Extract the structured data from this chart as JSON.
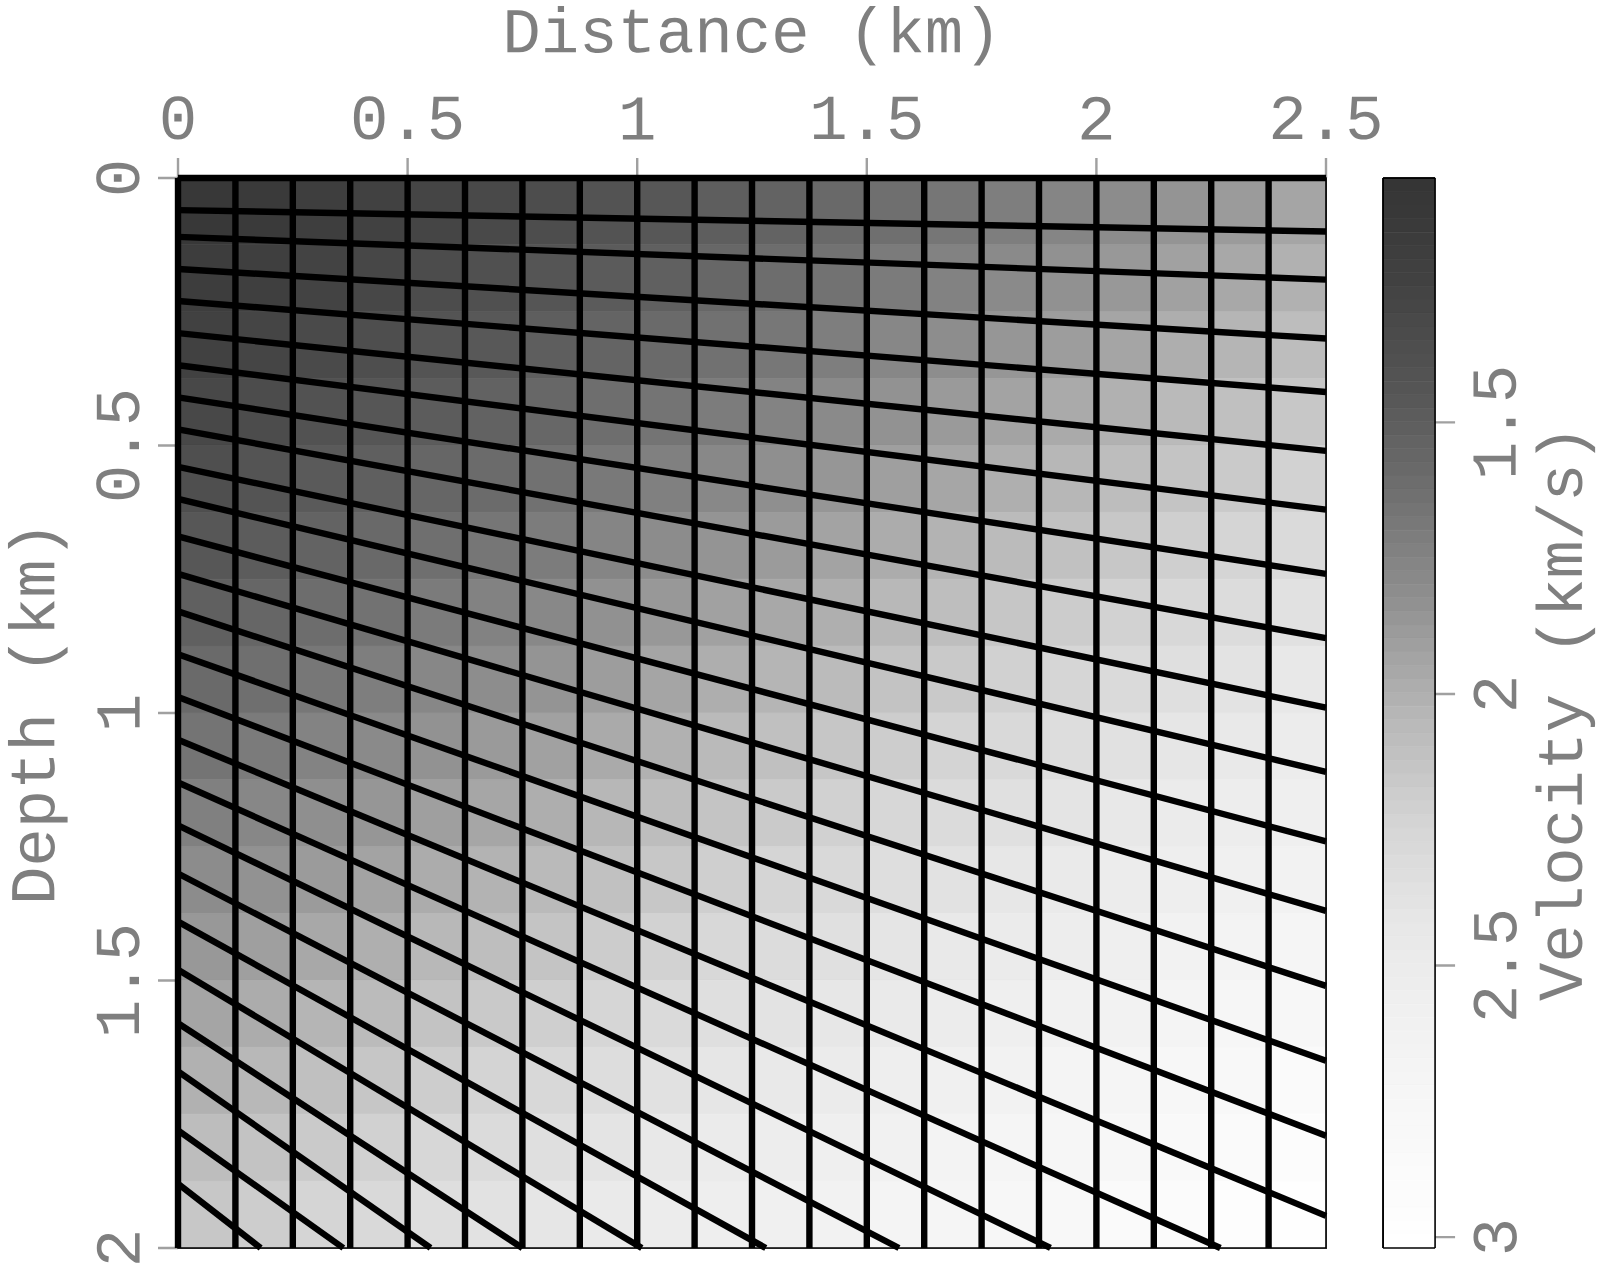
{
  "chart_data": [
    {
      "type": "heatmap",
      "clabel": "Velocity (km/s)",
      "categories": [
        null,
        null,
        null,
        null,
        null,
        null,
        null,
        null,
        null,
        null,
        null,
        null,
        null,
        null,
        null,
        null,
        null,
        null,
        null,
        null
      ],
      "y_categories": [
        null,
        null,
        null,
        null,
        null,
        null,
        null,
        null,
        null,
        null,
        null,
        null,
        null,
        null,
        null,
        null
      ],
      "cells": [
        [
          1.1,
          1.14,
          1.19,
          1.23,
          1.28,
          1.32,
          1.36,
          1.41,
          1.45,
          1.5,
          1.54,
          1.58,
          1.63,
          1.67,
          1.72,
          1.76,
          1.8,
          1.85,
          1.89,
          1.94
        ],
        [
          1.17,
          1.21,
          1.26,
          1.3,
          1.35,
          1.39,
          1.43,
          1.48,
          1.52,
          1.57,
          1.61,
          1.65,
          1.7,
          1.74,
          1.79,
          1.83,
          1.87,
          1.92,
          1.96,
          2.01
        ],
        [
          1.24,
          1.28,
          1.33,
          1.37,
          1.42,
          1.46,
          1.5,
          1.55,
          1.59,
          1.64,
          1.68,
          1.72,
          1.77,
          1.81,
          1.86,
          1.9,
          1.94,
          1.99,
          2.03,
          2.08
        ],
        [
          1.31,
          1.35,
          1.4,
          1.44,
          1.49,
          1.53,
          1.57,
          1.62,
          1.66,
          1.71,
          1.75,
          1.79,
          1.84,
          1.88,
          1.93,
          1.97,
          2.01,
          2.06,
          2.1,
          2.15
        ],
        [
          1.38,
          1.42,
          1.47,
          1.51,
          1.56,
          1.6,
          1.64,
          1.69,
          1.73,
          1.78,
          1.82,
          1.86,
          1.91,
          1.95,
          2,
          2.04,
          2.08,
          2.13,
          2.17,
          2.22
        ],
        [
          1.45,
          1.49,
          1.54,
          1.58,
          1.63,
          1.67,
          1.71,
          1.76,
          1.8,
          1.85,
          1.89,
          1.93,
          1.98,
          2.02,
          2.07,
          2.11,
          2.15,
          2.2,
          2.24,
          2.29
        ],
        [
          1.52,
          1.56,
          1.61,
          1.65,
          1.7,
          1.74,
          1.78,
          1.83,
          1.87,
          1.92,
          1.96,
          2,
          2.05,
          2.09,
          2.14,
          2.18,
          2.22,
          2.27,
          2.31,
          2.36
        ],
        [
          1.59,
          1.63,
          1.68,
          1.72,
          1.77,
          1.81,
          1.85,
          1.9,
          1.94,
          1.99,
          2.03,
          2.07,
          2.12,
          2.16,
          2.21,
          2.25,
          2.29,
          2.34,
          2.38,
          2.43
        ],
        [
          1.66,
          1.7,
          1.75,
          1.79,
          1.84,
          1.88,
          1.92,
          1.97,
          2.01,
          2.06,
          2.1,
          2.14,
          2.19,
          2.23,
          2.28,
          2.32,
          2.36,
          2.41,
          2.45,
          2.5
        ],
        [
          1.73,
          1.77,
          1.82,
          1.86,
          1.91,
          1.95,
          1.99,
          2.04,
          2.08,
          2.13,
          2.17,
          2.21,
          2.26,
          2.3,
          2.35,
          2.39,
          2.43,
          2.48,
          2.52,
          2.57
        ],
        [
          1.8,
          1.84,
          1.89,
          1.93,
          1.98,
          2.02,
          2.06,
          2.11,
          2.15,
          2.2,
          2.24,
          2.28,
          2.33,
          2.37,
          2.42,
          2.46,
          2.5,
          2.55,
          2.59,
          2.64
        ],
        [
          1.87,
          1.91,
          1.96,
          2,
          2.05,
          2.09,
          2.13,
          2.18,
          2.22,
          2.27,
          2.31,
          2.35,
          2.4,
          2.44,
          2.49,
          2.53,
          2.57,
          2.62,
          2.66,
          2.71
        ],
        [
          1.94,
          1.98,
          2.03,
          2.07,
          2.12,
          2.16,
          2.2,
          2.25,
          2.29,
          2.34,
          2.38,
          2.42,
          2.47,
          2.51,
          2.56,
          2.6,
          2.64,
          2.69,
          2.73,
          2.78
        ],
        [
          2.01,
          2.05,
          2.1,
          2.14,
          2.19,
          2.23,
          2.27,
          2.32,
          2.36,
          2.41,
          2.45,
          2.49,
          2.54,
          2.58,
          2.63,
          2.67,
          2.71,
          2.76,
          2.8,
          2.85
        ],
        [
          2.08,
          2.12,
          2.17,
          2.21,
          2.26,
          2.3,
          2.34,
          2.39,
          2.43,
          2.48,
          2.52,
          2.56,
          2.61,
          2.65,
          2.7,
          2.74,
          2.78,
          2.83,
          2.87,
          2.92
        ],
        [
          2.15,
          2.19,
          2.24,
          2.28,
          2.33,
          2.37,
          2.41,
          2.46,
          2.5,
          2.55,
          2.59,
          2.63,
          2.68,
          2.72,
          2.77,
          2.81,
          2.85,
          2.9,
          2.94,
          2.99
        ]
      ],
      "clim": [
        3.02,
        1.05
      ],
      "cticks": [
        1.5,
        2,
        2.5,
        3
      ]
    },
    {
      "type": "line",
      "xlabel": "Distance (km)",
      "ylabel": "Depth (km)",
      "xlim": [
        0,
        2.5
      ],
      "ylim": [
        2,
        0
      ],
      "xticks": [
        0,
        0.5,
        1,
        1.5,
        2,
        2.5
      ],
      "yticks": [
        0,
        0.5,
        1,
        1.5,
        2
      ],
      "series": [
        {
          "color": "#000000",
          "x": [
            0,
            0
          ],
          "values": [
            0,
            2
          ]
        },
        {
          "color": "#000000",
          "x": [
            0.125,
            0.125
          ],
          "values": [
            0,
            2
          ]
        },
        {
          "color": "#000000",
          "x": [
            0.25,
            0.25
          ],
          "values": [
            0,
            2
          ]
        },
        {
          "color": "#000000",
          "x": [
            0.375,
            0.375
          ],
          "values": [
            0,
            2
          ]
        },
        {
          "color": "#000000",
          "x": [
            0.5,
            0.5
          ],
          "values": [
            0,
            2
          ]
        },
        {
          "color": "#000000",
          "x": [
            0.625,
            0.625
          ],
          "values": [
            0,
            2
          ]
        },
        {
          "color": "#000000",
          "x": [
            0.75,
            0.75
          ],
          "values": [
            0,
            2
          ]
        },
        {
          "color": "#000000",
          "x": [
            0.875,
            0.875
          ],
          "values": [
            0,
            2
          ]
        },
        {
          "color": "#000000",
          "x": [
            1,
            1
          ],
          "values": [
            0,
            2
          ]
        },
        {
          "color": "#000000",
          "x": [
            1.125,
            1.125
          ],
          "values": [
            0,
            2
          ]
        },
        {
          "color": "#000000",
          "x": [
            1.25,
            1.25
          ],
          "values": [
            0,
            2
          ]
        },
        {
          "color": "#000000",
          "x": [
            1.375,
            1.375
          ],
          "values": [
            0,
            2
          ]
        },
        {
          "color": "#000000",
          "x": [
            1.5,
            1.5
          ],
          "values": [
            0,
            2
          ]
        },
        {
          "color": "#000000",
          "x": [
            1.625,
            1.625
          ],
          "values": [
            0,
            2
          ]
        },
        {
          "color": "#000000",
          "x": [
            1.75,
            1.75
          ],
          "values": [
            0,
            2
          ]
        },
        {
          "color": "#000000",
          "x": [
            1.875,
            1.875
          ],
          "values": [
            0,
            2
          ]
        },
        {
          "color": "#000000",
          "x": [
            2,
            2
          ],
          "values": [
            0,
            2
          ]
        },
        {
          "color": "#000000",
          "x": [
            2.125,
            2.125
          ],
          "values": [
            0,
            2
          ]
        },
        {
          "color": "#000000",
          "x": [
            2.25,
            2.25
          ],
          "values": [
            0,
            2
          ]
        },
        {
          "color": "#000000",
          "x": [
            2.375,
            2.375
          ],
          "values": [
            0,
            2
          ]
        },
        {
          "color": "#000000",
          "x": [
            0,
            2.5
          ],
          "values": [
            0,
            0
          ]
        },
        {
          "color": "#000000",
          "x": [
            0,
            2.5
          ],
          "values": [
            0.06,
            0.1
          ]
        },
        {
          "color": "#000000",
          "x": [
            0,
            2.5
          ],
          "values": [
            0.11,
            0.19
          ]
        },
        {
          "color": "#000000",
          "x": [
            0,
            2.5
          ],
          "values": [
            0.17,
            0.3
          ]
        },
        {
          "color": "#000000",
          "x": [
            0,
            2.5
          ],
          "values": [
            0.23,
            0.4
          ]
        },
        {
          "color": "#000000",
          "x": [
            0,
            2.5
          ],
          "values": [
            0.29,
            0.51
          ]
        },
        {
          "color": "#000000",
          "x": [
            0,
            2.5
          ],
          "values": [
            0.35,
            0.62
          ]
        },
        {
          "color": "#000000",
          "x": [
            0,
            2.5
          ],
          "values": [
            0.41,
            0.74
          ]
        },
        {
          "color": "#000000",
          "x": [
            0,
            2.5
          ],
          "values": [
            0.47,
            0.86
          ]
        },
        {
          "color": "#000000",
          "x": [
            0,
            2.5
          ],
          "values": [
            0.54,
            0.99
          ]
        },
        {
          "color": "#000000",
          "x": [
            0,
            2.5
          ],
          "values": [
            0.6,
            1.11
          ]
        },
        {
          "color": "#000000",
          "x": [
            0,
            2.5
          ],
          "values": [
            0.67,
            1.24
          ]
        },
        {
          "color": "#000000",
          "x": [
            0,
            2.5
          ],
          "values": [
            0.74,
            1.37
          ]
        },
        {
          "color": "#000000",
          "x": [
            0,
            2.5
          ],
          "values": [
            0.81,
            1.51
          ]
        },
        {
          "color": "#000000",
          "x": [
            0,
            2.5
          ],
          "values": [
            0.89,
            1.65
          ]
        },
        {
          "color": "#000000",
          "x": [
            0,
            2.5
          ],
          "values": [
            0.97,
            1.79
          ]
        },
        {
          "color": "#000000",
          "x": [
            0,
            2.5
          ],
          "values": [
            1.05,
            1.94
          ]
        },
        {
          "color": "#000000",
          "x": [
            0,
            2.27
          ],
          "values": [
            1.13,
            2
          ]
        },
        {
          "color": "#000000",
          "x": [
            0,
            1.9
          ],
          "values": [
            1.21,
            2
          ]
        },
        {
          "color": "#000000",
          "x": [
            0,
            1.57
          ],
          "values": [
            1.3,
            2
          ]
        },
        {
          "color": "#000000",
          "x": [
            0,
            1.28
          ],
          "values": [
            1.39,
            2
          ]
        },
        {
          "color": "#000000",
          "x": [
            0,
            1.01
          ],
          "values": [
            1.48,
            2
          ]
        },
        {
          "color": "#000000",
          "x": [
            0,
            0.75
          ],
          "values": [
            1.58,
            2
          ]
        },
        {
          "color": "#000000",
          "x": [
            0,
            0.55
          ],
          "values": [
            1.67,
            2
          ]
        },
        {
          "color": "#000000",
          "x": [
            0,
            0.36
          ],
          "values": [
            1.78,
            2
          ]
        },
        {
          "color": "#000000",
          "x": [
            0,
            0.18
          ],
          "values": [
            1.88,
            2
          ]
        }
      ]
    }
  ]
}
